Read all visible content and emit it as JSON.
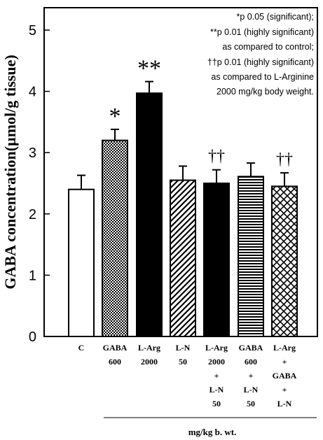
{
  "chart_data": {
    "type": "bar",
    "ylabel": "GABA concentration(µmol/g tissue)",
    "xlabel": "mg/kg b. wt.",
    "ylim": [
      0,
      5
    ],
    "yticks": [
      "0",
      "1",
      "2",
      "3",
      "4",
      "5"
    ],
    "grid": false,
    "categories": [
      [
        "C"
      ],
      [
        "GABA",
        "600"
      ],
      [
        "L-Arg",
        "2000"
      ],
      [
        "L-N",
        "50"
      ],
      [
        "L-Arg",
        "2000",
        "+",
        "L-N",
        "50"
      ],
      [
        "GABA",
        "600",
        "+",
        "L-N",
        "50"
      ],
      [
        "L-Arg",
        "+",
        "GABA",
        "+",
        "L-N"
      ]
    ],
    "values": [
      2.4,
      3.2,
      3.97,
      2.55,
      2.5,
      2.61,
      2.45
    ],
    "errors": [
      0.23,
      0.18,
      0.19,
      0.23,
      0.22,
      0.22,
      0.22
    ],
    "patterns": [
      "white",
      "dots",
      "black",
      "diagonal",
      "black",
      "horizontal",
      "crosshatch"
    ],
    "markers": [
      "",
      "*",
      "**",
      "",
      "††",
      "",
      "††"
    ],
    "legend_lines": [
      "*p  0.05 (significant);",
      "**p  0.01 (highly significant)",
      "as compared to control;",
      "††p  0.01 (highly significant)",
      "as compared to L-Arginine",
      "2000 mg/kg body weight."
    ],
    "legend_position": "top-right"
  }
}
